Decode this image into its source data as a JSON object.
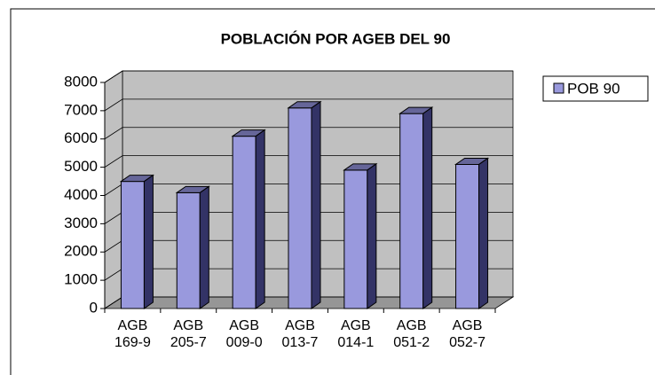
{
  "chart_data": {
    "type": "bar",
    "title": "POBLACIÓN POR AGEB DEL 90",
    "categories": [
      "AGB 169-9",
      "AGB 205-7",
      "AGB 009-0",
      "AGB 013-7",
      "AGB 014-1",
      "AGB 051-2",
      "AGB 052-7"
    ],
    "series": [
      {
        "name": "POB 90",
        "color": "#9999dd",
        "values": [
          4500,
          4100,
          6100,
          7100,
          4900,
          6900,
          5100
        ]
      }
    ],
    "ylim": [
      0,
      8000
    ],
    "yticks": [
      0,
      1000,
      2000,
      3000,
      4000,
      5000,
      6000,
      7000,
      8000
    ],
    "grid": true,
    "legend": "right"
  }
}
